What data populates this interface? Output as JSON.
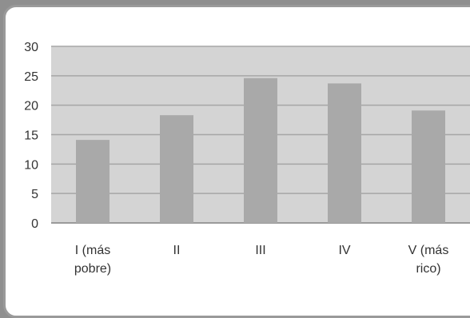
{
  "chart_data": {
    "type": "bar",
    "title": "",
    "xlabel": "",
    "ylabel": "",
    "categories": [
      [
        "I (más",
        "pobre)"
      ],
      [
        "II"
      ],
      [
        "III"
      ],
      [
        "IV"
      ],
      [
        "V (más",
        "rico)"
      ]
    ],
    "values": [
      14.1,
      18.3,
      24.6,
      23.7,
      19.1
    ],
    "ylim": [
      0,
      30
    ],
    "yticks": [
      0,
      5,
      10,
      15,
      20,
      25,
      30
    ],
    "grid": true,
    "legend": "none",
    "colors": {
      "bar": "#a9a9a9",
      "plot_bg": "#d4d4d4",
      "grid": "#a6a6a6",
      "axis": "#9a9a9a"
    }
  }
}
